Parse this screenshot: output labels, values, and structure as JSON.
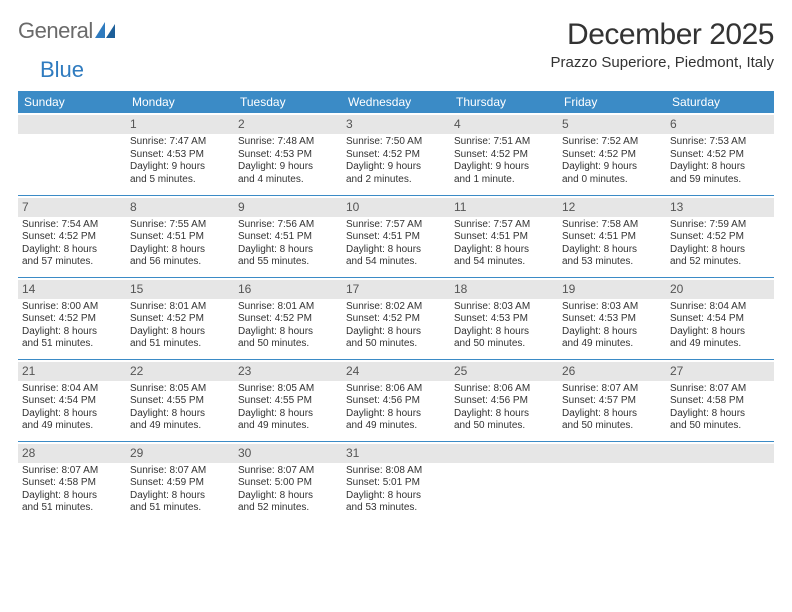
{
  "logo": {
    "text1": "General",
    "text2": "Blue"
  },
  "header": {
    "month_title": "December 2025",
    "location": "Prazzo Superiore, Piedmont, Italy"
  },
  "colors": {
    "header_bg": "#3b8bc6",
    "header_text": "#ffffff",
    "daynum_bg": "#e6e6e6",
    "row_border": "#3b8bc6",
    "logo_gray": "#6a6a6a",
    "logo_blue": "#2f7bbf"
  },
  "day_headers": [
    "Sunday",
    "Monday",
    "Tuesday",
    "Wednesday",
    "Thursday",
    "Friday",
    "Saturday"
  ],
  "weeks": [
    [
      {
        "n": ""
      },
      {
        "n": "1",
        "l1": "Sunrise: 7:47 AM",
        "l2": "Sunset: 4:53 PM",
        "l3": "Daylight: 9 hours",
        "l4": "and 5 minutes."
      },
      {
        "n": "2",
        "l1": "Sunrise: 7:48 AM",
        "l2": "Sunset: 4:53 PM",
        "l3": "Daylight: 9 hours",
        "l4": "and 4 minutes."
      },
      {
        "n": "3",
        "l1": "Sunrise: 7:50 AM",
        "l2": "Sunset: 4:52 PM",
        "l3": "Daylight: 9 hours",
        "l4": "and 2 minutes."
      },
      {
        "n": "4",
        "l1": "Sunrise: 7:51 AM",
        "l2": "Sunset: 4:52 PM",
        "l3": "Daylight: 9 hours",
        "l4": "and 1 minute."
      },
      {
        "n": "5",
        "l1": "Sunrise: 7:52 AM",
        "l2": "Sunset: 4:52 PM",
        "l3": "Daylight: 9 hours",
        "l4": "and 0 minutes."
      },
      {
        "n": "6",
        "l1": "Sunrise: 7:53 AM",
        "l2": "Sunset: 4:52 PM",
        "l3": "Daylight: 8 hours",
        "l4": "and 59 minutes."
      }
    ],
    [
      {
        "n": "7",
        "l1": "Sunrise: 7:54 AM",
        "l2": "Sunset: 4:52 PM",
        "l3": "Daylight: 8 hours",
        "l4": "and 57 minutes."
      },
      {
        "n": "8",
        "l1": "Sunrise: 7:55 AM",
        "l2": "Sunset: 4:51 PM",
        "l3": "Daylight: 8 hours",
        "l4": "and 56 minutes."
      },
      {
        "n": "9",
        "l1": "Sunrise: 7:56 AM",
        "l2": "Sunset: 4:51 PM",
        "l3": "Daylight: 8 hours",
        "l4": "and 55 minutes."
      },
      {
        "n": "10",
        "l1": "Sunrise: 7:57 AM",
        "l2": "Sunset: 4:51 PM",
        "l3": "Daylight: 8 hours",
        "l4": "and 54 minutes."
      },
      {
        "n": "11",
        "l1": "Sunrise: 7:57 AM",
        "l2": "Sunset: 4:51 PM",
        "l3": "Daylight: 8 hours",
        "l4": "and 54 minutes."
      },
      {
        "n": "12",
        "l1": "Sunrise: 7:58 AM",
        "l2": "Sunset: 4:51 PM",
        "l3": "Daylight: 8 hours",
        "l4": "and 53 minutes."
      },
      {
        "n": "13",
        "l1": "Sunrise: 7:59 AM",
        "l2": "Sunset: 4:52 PM",
        "l3": "Daylight: 8 hours",
        "l4": "and 52 minutes."
      }
    ],
    [
      {
        "n": "14",
        "l1": "Sunrise: 8:00 AM",
        "l2": "Sunset: 4:52 PM",
        "l3": "Daylight: 8 hours",
        "l4": "and 51 minutes."
      },
      {
        "n": "15",
        "l1": "Sunrise: 8:01 AM",
        "l2": "Sunset: 4:52 PM",
        "l3": "Daylight: 8 hours",
        "l4": "and 51 minutes."
      },
      {
        "n": "16",
        "l1": "Sunrise: 8:01 AM",
        "l2": "Sunset: 4:52 PM",
        "l3": "Daylight: 8 hours",
        "l4": "and 50 minutes."
      },
      {
        "n": "17",
        "l1": "Sunrise: 8:02 AM",
        "l2": "Sunset: 4:52 PM",
        "l3": "Daylight: 8 hours",
        "l4": "and 50 minutes."
      },
      {
        "n": "18",
        "l1": "Sunrise: 8:03 AM",
        "l2": "Sunset: 4:53 PM",
        "l3": "Daylight: 8 hours",
        "l4": "and 50 minutes."
      },
      {
        "n": "19",
        "l1": "Sunrise: 8:03 AM",
        "l2": "Sunset: 4:53 PM",
        "l3": "Daylight: 8 hours",
        "l4": "and 49 minutes."
      },
      {
        "n": "20",
        "l1": "Sunrise: 8:04 AM",
        "l2": "Sunset: 4:54 PM",
        "l3": "Daylight: 8 hours",
        "l4": "and 49 minutes."
      }
    ],
    [
      {
        "n": "21",
        "l1": "Sunrise: 8:04 AM",
        "l2": "Sunset: 4:54 PM",
        "l3": "Daylight: 8 hours",
        "l4": "and 49 minutes."
      },
      {
        "n": "22",
        "l1": "Sunrise: 8:05 AM",
        "l2": "Sunset: 4:55 PM",
        "l3": "Daylight: 8 hours",
        "l4": "and 49 minutes."
      },
      {
        "n": "23",
        "l1": "Sunrise: 8:05 AM",
        "l2": "Sunset: 4:55 PM",
        "l3": "Daylight: 8 hours",
        "l4": "and 49 minutes."
      },
      {
        "n": "24",
        "l1": "Sunrise: 8:06 AM",
        "l2": "Sunset: 4:56 PM",
        "l3": "Daylight: 8 hours",
        "l4": "and 49 minutes."
      },
      {
        "n": "25",
        "l1": "Sunrise: 8:06 AM",
        "l2": "Sunset: 4:56 PM",
        "l3": "Daylight: 8 hours",
        "l4": "and 50 minutes."
      },
      {
        "n": "26",
        "l1": "Sunrise: 8:07 AM",
        "l2": "Sunset: 4:57 PM",
        "l3": "Daylight: 8 hours",
        "l4": "and 50 minutes."
      },
      {
        "n": "27",
        "l1": "Sunrise: 8:07 AM",
        "l2": "Sunset: 4:58 PM",
        "l3": "Daylight: 8 hours",
        "l4": "and 50 minutes."
      }
    ],
    [
      {
        "n": "28",
        "l1": "Sunrise: 8:07 AM",
        "l2": "Sunset: 4:58 PM",
        "l3": "Daylight: 8 hours",
        "l4": "and 51 minutes."
      },
      {
        "n": "29",
        "l1": "Sunrise: 8:07 AM",
        "l2": "Sunset: 4:59 PM",
        "l3": "Daylight: 8 hours",
        "l4": "and 51 minutes."
      },
      {
        "n": "30",
        "l1": "Sunrise: 8:07 AM",
        "l2": "Sunset: 5:00 PM",
        "l3": "Daylight: 8 hours",
        "l4": "and 52 minutes."
      },
      {
        "n": "31",
        "l1": "Sunrise: 8:08 AM",
        "l2": "Sunset: 5:01 PM",
        "l3": "Daylight: 8 hours",
        "l4": "and 53 minutes."
      },
      {
        "n": ""
      },
      {
        "n": ""
      },
      {
        "n": ""
      }
    ]
  ]
}
